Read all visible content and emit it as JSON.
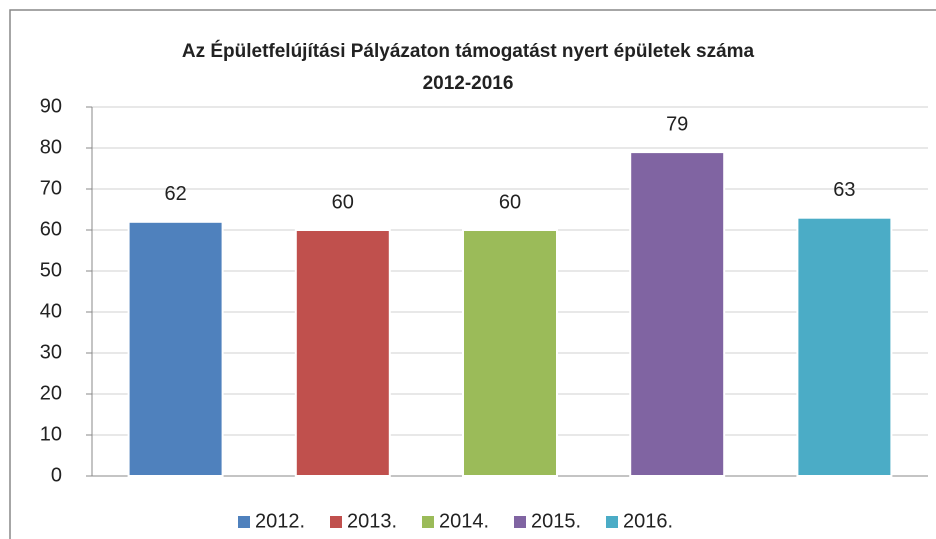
{
  "chart_data": {
    "type": "bar",
    "title": [
      "Az Épületfelújítási Pályázaton  támogatást nyert épületek száma",
      "2012-2016"
    ],
    "series": [
      {
        "name": "2012.",
        "color": "#4f81bd",
        "values": [
          62
        ]
      },
      {
        "name": "2013.",
        "color": "#c0504d",
        "values": [
          60
        ]
      },
      {
        "name": "2014.",
        "color": "#9bbb59",
        "values": [
          60
        ]
      },
      {
        "name": "2015.",
        "color": "#8064a2",
        "values": [
          79
        ]
      },
      {
        "name": "2016.",
        "color": "#4bacc6",
        "values": [
          63
        ]
      }
    ],
    "ylim": [
      0,
      90
    ],
    "yticks": [
      0,
      10,
      20,
      30,
      40,
      50,
      60,
      70,
      80,
      90
    ],
    "grid": true,
    "legend": "bottom"
  }
}
